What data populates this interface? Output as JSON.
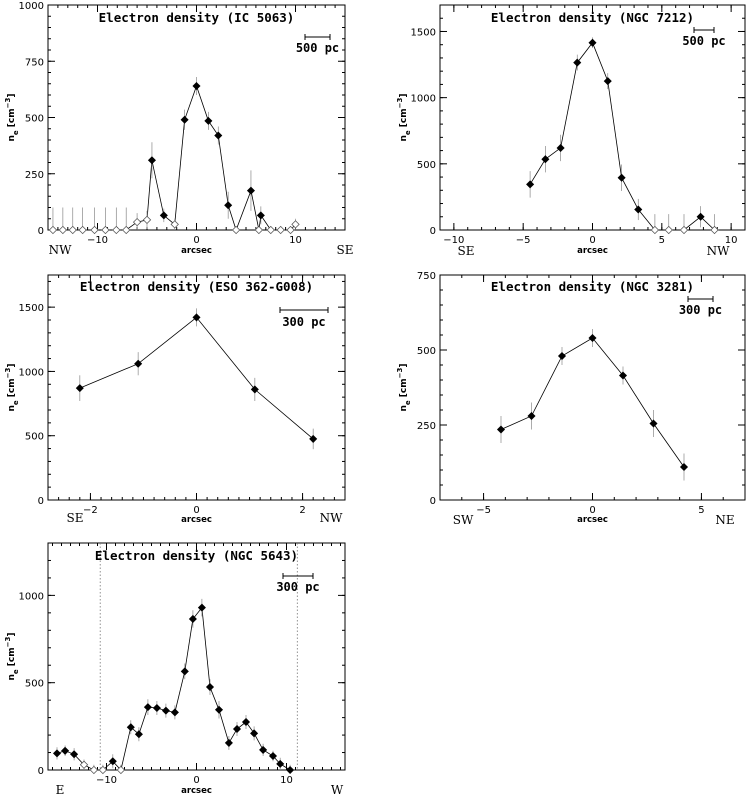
{
  "figure": {
    "description_labels": {
      "xlabel": "arcsec",
      "ylabel": "n",
      "ylabel_sub": "e",
      "ylabel_unit": " [cm",
      "ylabel_exp": "−3",
      "ylabel_close": "]"
    }
  },
  "chart_data": [
    {
      "type": "line",
      "title": "Electron density (IC 5063)",
      "xlabel": "arcsec",
      "ylabel": "ne [cm−3]",
      "xlim": [
        -15,
        15
      ],
      "ylim": [
        0,
        1000
      ],
      "xticks": [
        -10,
        0,
        10
      ],
      "yticks": [
        0,
        250,
        500,
        750,
        1000
      ],
      "grid": false,
      "scale_bar": "500 pc",
      "direction_left": "NW",
      "direction_right": "SE",
      "series": [
        {
          "marker": "open",
          "x": [
            -14.5,
            -13.5,
            -12.5,
            -11.5,
            -10.3,
            -9.2,
            -8.1,
            -7.1,
            -6.0,
            -5.0,
            -2.2,
            4.0,
            6.3,
            7.5,
            8.5,
            9.5,
            10.0
          ],
          "y": [
            0,
            0,
            0,
            0,
            0,
            0,
            0,
            0,
            35,
            45,
            25,
            0,
            0,
            0,
            0,
            0,
            25
          ],
          "err": [
            100,
            100,
            100,
            100,
            100,
            100,
            100,
            100,
            40,
            40,
            25,
            0,
            0,
            0,
            0,
            0,
            25
          ]
        },
        {
          "marker": "filled",
          "x": [
            -4.5,
            -3.3,
            -1.2,
            0.0,
            1.2,
            2.2,
            3.2,
            5.5,
            6.5
          ],
          "y": [
            310,
            65,
            490,
            640,
            485,
            420,
            110,
            175,
            65
          ],
          "err": [
            80,
            30,
            45,
            40,
            40,
            40,
            60,
            90,
            40
          ]
        }
      ]
    },
    {
      "type": "line",
      "title": "Electron density (NGC 7212)",
      "xlabel": "arcsec",
      "ylabel": "ne [cm−3]",
      "xlim": [
        -11,
        11
      ],
      "ylim": [
        0,
        1700
      ],
      "xticks": [
        -10,
        -5,
        0,
        5,
        10
      ],
      "yticks": [
        0,
        500,
        1000,
        1500
      ],
      "grid": false,
      "scale_bar": "500 pc",
      "direction_left": "SE",
      "direction_right": "NW",
      "series": [
        {
          "marker": "filled",
          "x": [
            -4.5,
            -3.4,
            -2.3,
            -1.1,
            0.0,
            1.1,
            2.1,
            3.3,
            7.8
          ],
          "y": [
            345,
            535,
            620,
            1265,
            1415,
            1125,
            395,
            155,
            100
          ],
          "err": [
            100,
            100,
            100,
            60,
            40,
            60,
            100,
            80,
            80
          ]
        },
        {
          "marker": "open",
          "x": [
            4.5,
            5.5,
            6.6,
            8.8
          ],
          "y": [
            0,
            0,
            0,
            0
          ],
          "err": [
            120,
            120,
            120,
            120
          ]
        }
      ]
    },
    {
      "type": "line",
      "title": "Electron density (ESO 362-G008)",
      "xlabel": "arcsec",
      "ylabel": "ne [cm−3]",
      "xlim": [
        -2.8,
        2.8
      ],
      "ylim": [
        0,
        1750
      ],
      "xticks": [
        -2,
        0,
        2
      ],
      "yticks": [
        0,
        500,
        1000,
        1500
      ],
      "grid": false,
      "scale_bar": "300 pc",
      "direction_left": "SE",
      "direction_right": "NW",
      "series": [
        {
          "marker": "filled",
          "x": [
            -2.2,
            -1.1,
            0.0,
            1.1,
            2.2
          ],
          "y": [
            870,
            1060,
            1420,
            860,
            475
          ],
          "err": [
            100,
            90,
            70,
            90,
            80
          ]
        }
      ]
    },
    {
      "type": "line",
      "title": "Electron density (NGC 3281)",
      "xlabel": "arcsec",
      "ylabel": "ne [cm−3]",
      "xlim": [
        -7,
        7
      ],
      "ylim": [
        0,
        750
      ],
      "xticks": [
        -5,
        0,
        5
      ],
      "yticks": [
        0,
        250,
        500,
        750
      ],
      "grid": false,
      "scale_bar": "300 pc",
      "direction_left": "SW",
      "direction_right": "NE",
      "series": [
        {
          "marker": "filled",
          "x": [
            -4.2,
            -2.8,
            -1.4,
            0.0,
            1.4,
            2.8,
            4.2
          ],
          "y": [
            235,
            280,
            480,
            540,
            415,
            255,
            110
          ],
          "err": [
            45,
            45,
            30,
            30,
            30,
            45,
            45
          ]
        }
      ]
    },
    {
      "type": "line",
      "title": "Electron density (NGC 5643)",
      "xlabel": "arcsec",
      "ylabel": "ne [cm−3]",
      "xlim": [
        -16.5,
        16.5
      ],
      "ylim": [
        0,
        1300
      ],
      "xticks": [
        -10,
        0,
        10
      ],
      "yticks": [
        0,
        500,
        1000
      ],
      "grid": false,
      "scale_bar": "300 pc",
      "direction_left": "E",
      "direction_right": "W",
      "vertical_lines": [
        -10.7,
        11.2
      ],
      "series": [
        {
          "marker": "filled",
          "x": [
            -15.5,
            -14.6,
            -13.6,
            -9.3,
            -7.3,
            -6.4,
            -5.4,
            -4.4,
            -3.4,
            -2.4,
            -1.3,
            -0.4,
            0.6,
            1.5,
            2.5,
            3.6,
            4.5,
            5.5,
            6.4,
            7.4,
            8.5,
            9.3,
            10.4
          ],
          "y": [
            95,
            110,
            90,
            50,
            245,
            205,
            360,
            355,
            340,
            330,
            565,
            865,
            930,
            475,
            345,
            155,
            235,
            275,
            210,
            115,
            80,
            35,
            0
          ],
          "err": [
            35,
            30,
            35,
            40,
            40,
            40,
            45,
            40,
            40,
            40,
            45,
            50,
            50,
            45,
            50,
            40,
            40,
            40,
            40,
            35,
            30,
            35,
            30
          ]
        },
        {
          "marker": "open",
          "x": [
            -12.5,
            -11.4,
            -10.4,
            -8.4
          ],
          "y": [
            30,
            0,
            0,
            0
          ],
          "err": [
            30,
            30,
            30,
            30
          ]
        }
      ]
    }
  ]
}
